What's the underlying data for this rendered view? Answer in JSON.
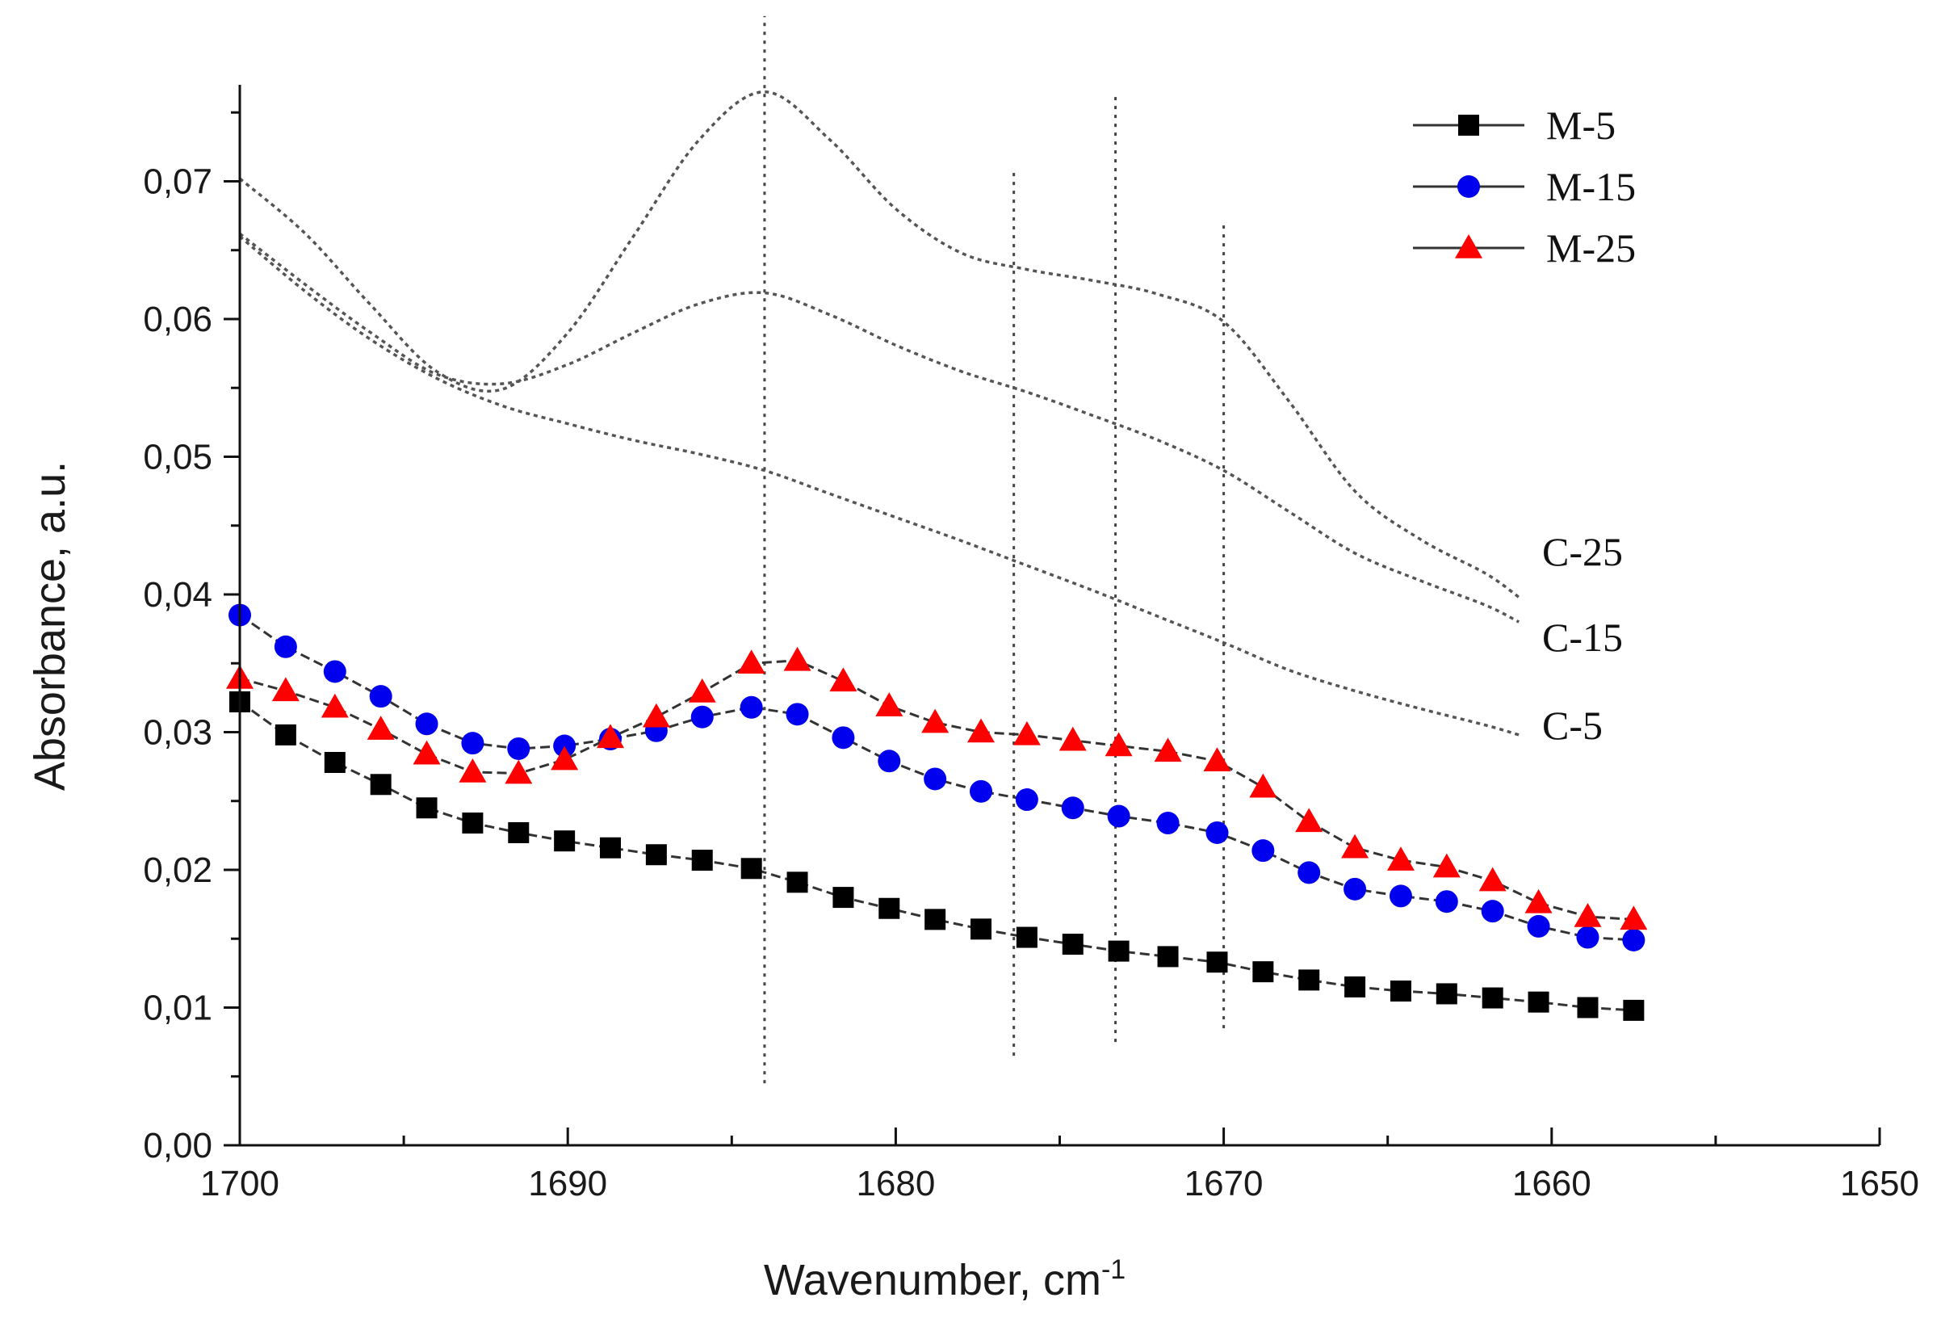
{
  "chart_data": {
    "type": "line",
    "title": "",
    "xlabel": "Wavenumber, cm",
    "xlabel_superscript": "-1",
    "ylabel": "Absorbance, a.u.",
    "xlim": [
      1700,
      1650
    ],
    "ylim": [
      0,
      0.077
    ],
    "x_ticks": [
      1700,
      1690,
      1680,
      1670,
      1660,
      1650
    ],
    "x_tick_labels": [
      "1700",
      "1690",
      "1680",
      "1670",
      "1660",
      "1650"
    ],
    "y_ticks": [
      0.0,
      0.01,
      0.02,
      0.03,
      0.04,
      0.05,
      0.06,
      0.07
    ],
    "y_tick_labels": [
      "0,00",
      "0,01",
      "0,02",
      "0,03",
      "0,04",
      "0,05",
      "0,06",
      "0,07"
    ],
    "grid": false,
    "legend_position": "top-right",
    "reference_lines": [
      {
        "x": 1684,
        "y_from": 0.0045,
        "y_to": 0.082
      },
      {
        "x": 1676.4,
        "y_from": 0.0065,
        "y_to": 0.071
      },
      {
        "x": 1673.3,
        "y_from": 0.0075,
        "y_to": 0.0765
      },
      {
        "x": 1670,
        "y_from": 0.0085,
        "y_to": 0.067
      }
    ],
    "series": [
      {
        "name": "M-5",
        "color": "#000000",
        "marker": "square",
        "x": [
          1700,
          1698.6,
          1697.1,
          1695.7,
          1694.3,
          1692.9,
          1691.5,
          1690.1,
          1688.7,
          1687.3,
          1685.9,
          1684.4,
          1683,
          1681.6,
          1680.2,
          1678.8,
          1677.4,
          1676,
          1674.6,
          1673.2,
          1671.7,
          1670.2,
          1668.8,
          1667.4,
          1666,
          1664.6,
          1663.2,
          1661.8,
          1660.4,
          1658.9,
          1657.5
        ],
        "y": [
          0.0322,
          0.0298,
          0.0278,
          0.0262,
          0.0245,
          0.0234,
          0.0227,
          0.0221,
          0.0216,
          0.0211,
          0.0207,
          0.0201,
          0.0191,
          0.018,
          0.0172,
          0.0164,
          0.0157,
          0.0151,
          0.0146,
          0.0141,
          0.0137,
          0.0133,
          0.0126,
          0.012,
          0.0115,
          0.0112,
          0.011,
          0.0107,
          0.0104,
          0.01,
          0.0098
        ]
      },
      {
        "name": "M-15",
        "color": "#0000ee",
        "marker": "circle",
        "x": [
          1700,
          1698.6,
          1697.1,
          1695.7,
          1694.3,
          1692.9,
          1691.5,
          1690.1,
          1688.7,
          1687.3,
          1685.9,
          1684.4,
          1683,
          1681.6,
          1680.2,
          1678.8,
          1677.4,
          1676,
          1674.6,
          1673.2,
          1671.7,
          1670.2,
          1668.8,
          1667.4,
          1666,
          1664.6,
          1663.2,
          1661.8,
          1660.4,
          1658.9,
          1657.5
        ],
        "y": [
          0.0385,
          0.0362,
          0.0344,
          0.0326,
          0.0306,
          0.0292,
          0.0288,
          0.029,
          0.0295,
          0.0301,
          0.0311,
          0.0318,
          0.0313,
          0.0296,
          0.0279,
          0.0266,
          0.0257,
          0.0251,
          0.0245,
          0.0239,
          0.0234,
          0.0227,
          0.0214,
          0.0198,
          0.0186,
          0.0181,
          0.0177,
          0.017,
          0.0159,
          0.0151,
          0.0149
        ]
      },
      {
        "name": "M-25",
        "color": "#ff0000",
        "marker": "triangle",
        "x": [
          1700,
          1698.6,
          1697.1,
          1695.7,
          1694.3,
          1692.9,
          1691.5,
          1690.1,
          1688.7,
          1687.3,
          1685.9,
          1684.4,
          1683,
          1681.6,
          1680.2,
          1678.8,
          1677.4,
          1676,
          1674.6,
          1673.2,
          1671.7,
          1670.2,
          1668.8,
          1667.4,
          1666,
          1664.6,
          1663.2,
          1661.8,
          1660.4,
          1658.9,
          1657.5
        ],
        "y": [
          0.0339,
          0.033,
          0.0318,
          0.0302,
          0.0284,
          0.0271,
          0.027,
          0.028,
          0.0296,
          0.0311,
          0.0329,
          0.035,
          0.0352,
          0.0337,
          0.0319,
          0.0307,
          0.03,
          0.0298,
          0.0294,
          0.029,
          0.0286,
          0.0279,
          0.026,
          0.0235,
          0.0216,
          0.0207,
          0.0202,
          0.0192,
          0.0176,
          0.0166,
          0.0164
        ]
      },
      {
        "name": "C-5",
        "line_style": "dotted",
        "color": "#555555",
        "x": [
          1700,
          1698,
          1696,
          1694,
          1692,
          1690,
          1688,
          1686,
          1684,
          1682,
          1680,
          1678,
          1676,
          1674,
          1672,
          1670,
          1668,
          1666,
          1664,
          1662,
          1661
        ],
        "y": [
          0.066,
          0.062,
          0.0585,
          0.0557,
          0.0537,
          0.0524,
          0.0512,
          0.0502,
          0.049,
          0.0473,
          0.0456,
          0.0439,
          0.0421,
          0.0403,
          0.0384,
          0.0365,
          0.0345,
          0.033,
          0.0317,
          0.0305,
          0.0298
        ]
      },
      {
        "name": "C-15",
        "line_style": "dotted",
        "color": "#555555",
        "x": [
          1700,
          1698,
          1696,
          1694,
          1692,
          1690,
          1688,
          1686,
          1684,
          1682,
          1680,
          1678,
          1676,
          1674,
          1672,
          1670,
          1668,
          1666,
          1664,
          1662,
          1661
        ],
        "y": [
          0.0662,
          0.0625,
          0.059,
          0.056,
          0.0553,
          0.0567,
          0.059,
          0.0611,
          0.0619,
          0.0603,
          0.0581,
          0.0562,
          0.0547,
          0.053,
          0.0512,
          0.049,
          0.046,
          0.043,
          0.041,
          0.0392,
          0.038
        ]
      },
      {
        "name": "C-25",
        "line_style": "dotted",
        "color": "#555555",
        "x": [
          1700,
          1698,
          1696,
          1694,
          1692,
          1690,
          1688,
          1686,
          1684,
          1682,
          1680,
          1678,
          1676,
          1674,
          1672,
          1670,
          1668,
          1666,
          1664,
          1662,
          1661
        ],
        "y": [
          0.0702,
          0.0662,
          0.061,
          0.0562,
          0.0549,
          0.059,
          0.066,
          0.073,
          0.0765,
          0.073,
          0.068,
          0.0648,
          0.0636,
          0.0628,
          0.0618,
          0.0598,
          0.054,
          0.0475,
          0.044,
          0.0415,
          0.0398
        ]
      }
    ]
  }
}
